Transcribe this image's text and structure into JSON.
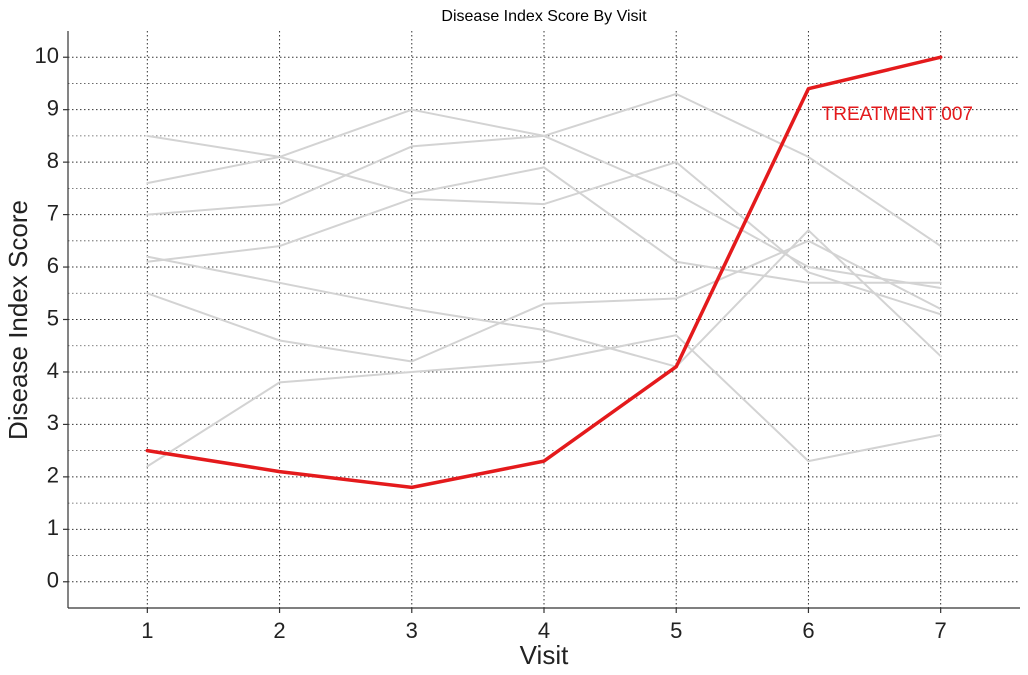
{
  "chart_data": {
    "type": "line",
    "title": "Disease Index Score By Visit",
    "xlabel": "Visit",
    "ylabel": "Disease Index Score",
    "x": [
      1,
      2,
      3,
      4,
      5,
      6,
      7
    ],
    "xlim": [
      0.4,
      7.6
    ],
    "ylim": [
      -0.5,
      10.5
    ],
    "x_ticks": [
      1,
      2,
      3,
      4,
      5,
      6,
      7
    ],
    "y_ticks": [
      0,
      1,
      2,
      3,
      4,
      5,
      6,
      7,
      8,
      9,
      10
    ],
    "grid": "dotted major and minor",
    "background_color": "#d3d3d3",
    "highlight_color": "#e41a1c",
    "series": [
      {
        "values": [
          8.5,
          8.1,
          7.4,
          7.9,
          6.1,
          5.7,
          5.7
        ]
      },
      {
        "values": [
          7.6,
          8.1,
          9.0,
          8.5,
          9.3,
          8.1,
          6.4
        ]
      },
      {
        "values": [
          7.0,
          7.2,
          8.3,
          8.5,
          7.4,
          6.0,
          5.6
        ]
      },
      {
        "values": [
          6.1,
          6.4,
          7.3,
          7.2,
          8.0,
          5.9,
          5.1
        ]
      },
      {
        "values": [
          6.2,
          5.7,
          5.2,
          4.8,
          4.1,
          6.7,
          4.3
        ]
      },
      {
        "values": [
          5.5,
          4.6,
          4.2,
          5.3,
          5.4,
          6.5,
          5.2
        ]
      },
      {
        "values": [
          2.2,
          3.8,
          4.0,
          4.2,
          4.7,
          2.3,
          2.8
        ]
      },
      {
        "values": [
          2.5,
          2.1,
          1.8,
          2.3,
          4.1,
          9.4,
          10.0
        ],
        "highlight": true
      }
    ],
    "annotations": [
      {
        "text": "TREATMENT 007",
        "x": 6.1,
        "y": 8.9
      }
    ]
  }
}
